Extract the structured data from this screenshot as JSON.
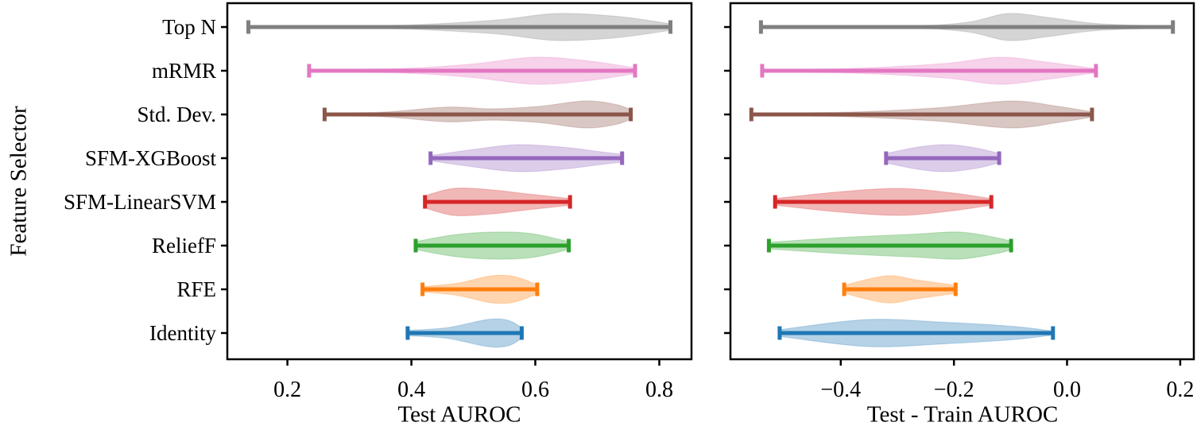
{
  "chart_data": [
    {
      "type": "violin",
      "orientation": "horizontal",
      "panel": "left",
      "xlabel": "Test AUROC",
      "ylabel": "Feature Selector",
      "xlim": [
        0.103,
        0.852
      ],
      "xticks": [
        0.2,
        0.4,
        0.6,
        0.8
      ],
      "xtick_labels": [
        "0.2",
        "0.4",
        "0.6",
        "0.8"
      ],
      "grid": false,
      "legend": "none",
      "fill_alpha": 0.33,
      "categories": [
        "Top N",
        "mRMR",
        "Std. Dev.",
        "SFM-XGBoost",
        "SFM-LinearSVM",
        "ReliefF",
        "RFE",
        "Identity"
      ],
      "series": [
        {
          "label": "Top N",
          "color": "#7f7f7f",
          "range": [
            0.137,
            0.818
          ],
          "peak": 0.64,
          "profile": [
            [
              0,
              0.06
            ],
            [
              0.3,
              0.09
            ],
            [
              0.45,
              0.25
            ],
            [
              0.6,
              0.55
            ],
            [
              0.73,
              1.0
            ],
            [
              0.87,
              0.8
            ],
            [
              1,
              0.25
            ]
          ]
        },
        {
          "label": "mRMR",
          "color": "#e377c2",
          "range": [
            0.235,
            0.761
          ],
          "peak": 0.6,
          "profile": [
            [
              0,
              0.06
            ],
            [
              0.3,
              0.18
            ],
            [
              0.5,
              0.5
            ],
            [
              0.69,
              1.0
            ],
            [
              0.85,
              0.75
            ],
            [
              1,
              0.22
            ]
          ]
        },
        {
          "label": "Std. Dev.",
          "color": "#8c564b",
          "range": [
            0.26,
            0.754
          ],
          "peak": 0.68,
          "profile": [
            [
              0,
              0.08
            ],
            [
              0.2,
              0.18
            ],
            [
              0.4,
              0.55
            ],
            [
              0.55,
              0.42
            ],
            [
              0.7,
              0.6
            ],
            [
              0.85,
              1.0
            ],
            [
              0.95,
              0.75
            ],
            [
              1,
              0.35
            ]
          ]
        },
        {
          "label": "SFM-XGBoost",
          "color": "#9467bd",
          "range": [
            0.431,
            0.74
          ],
          "peak": 0.57,
          "profile": [
            [
              0,
              0.2
            ],
            [
              0.2,
              0.6
            ],
            [
              0.45,
              1.0
            ],
            [
              0.7,
              0.8
            ],
            [
              0.9,
              0.45
            ],
            [
              1,
              0.3
            ]
          ]
        },
        {
          "label": "SFM-LinearSVM",
          "color": "#d62728",
          "range": [
            0.422,
            0.656
          ],
          "peak": 0.46,
          "profile": [
            [
              0,
              0.45
            ],
            [
              0.2,
              1.0
            ],
            [
              0.45,
              0.9
            ],
            [
              0.7,
              0.6
            ],
            [
              1,
              0.25
            ]
          ]
        },
        {
          "label": "ReliefF",
          "color": "#2ca02c",
          "range": [
            0.407,
            0.654
          ],
          "peak": 0.53,
          "profile": [
            [
              0,
              0.3
            ],
            [
              0.25,
              0.8
            ],
            [
              0.5,
              1.0
            ],
            [
              0.75,
              0.9
            ],
            [
              1,
              0.3
            ]
          ]
        },
        {
          "label": "RFE",
          "color": "#ff7f0e",
          "range": [
            0.418,
            0.603
          ],
          "peak": 0.53,
          "profile": [
            [
              0,
              0.2
            ],
            [
              0.3,
              0.45
            ],
            [
              0.6,
              1.0
            ],
            [
              0.8,
              0.95
            ],
            [
              1,
              0.35
            ]
          ]
        },
        {
          "label": "Identity",
          "color": "#1f77b4",
          "range": [
            0.394,
            0.578
          ],
          "peak": 0.52,
          "profile": [
            [
              0,
              0.2
            ],
            [
              0.35,
              0.4
            ],
            [
              0.7,
              1.0
            ],
            [
              0.88,
              0.95
            ],
            [
              1,
              0.4
            ]
          ]
        }
      ]
    },
    {
      "type": "violin",
      "orientation": "horizontal",
      "panel": "right",
      "xlabel": "Test - Train AUROC",
      "ylabel": "",
      "xlim": [
        -0.595,
        0.224
      ],
      "xticks": [
        -0.4,
        -0.2,
        0.0,
        0.2
      ],
      "xtick_labels": [
        "−0.4",
        "−0.2",
        "0.0",
        "0.2"
      ],
      "grid": false,
      "legend": "none",
      "fill_alpha": 0.33,
      "categories": [
        "Top N",
        "mRMR",
        "Std. Dev.",
        "SFM-XGBoost",
        "SFM-LinearSVM",
        "ReliefF",
        "RFE",
        "Identity"
      ],
      "series": [
        {
          "label": "Top N",
          "color": "#7f7f7f",
          "range": [
            -0.541,
            0.187
          ],
          "peak": -0.11,
          "profile": [
            [
              0,
              0.05
            ],
            [
              0.35,
              0.08
            ],
            [
              0.5,
              0.35
            ],
            [
              0.6,
              1.0
            ],
            [
              0.7,
              0.7
            ],
            [
              0.82,
              0.25
            ],
            [
              1,
              0.06
            ]
          ]
        },
        {
          "label": "mRMR",
          "color": "#e377c2",
          "range": [
            -0.539,
            0.051
          ],
          "peak": -0.12,
          "profile": [
            [
              0,
              0.06
            ],
            [
              0.3,
              0.2
            ],
            [
              0.55,
              0.55
            ],
            [
              0.71,
              1.0
            ],
            [
              0.85,
              0.65
            ],
            [
              1,
              0.15
            ]
          ]
        },
        {
          "label": "Std. Dev.",
          "color": "#8c564b",
          "range": [
            -0.558,
            0.044
          ],
          "peak": -0.1,
          "profile": [
            [
              0,
              0.06
            ],
            [
              0.3,
              0.18
            ],
            [
              0.55,
              0.5
            ],
            [
              0.76,
              1.0
            ],
            [
              0.9,
              0.6
            ],
            [
              1,
              0.2
            ]
          ]
        },
        {
          "label": "SFM-XGBoost",
          "color": "#9467bd",
          "range": [
            -0.32,
            -0.12
          ],
          "peak": -0.21,
          "profile": [
            [
              0,
              0.35
            ],
            [
              0.3,
              0.85
            ],
            [
              0.55,
              1.0
            ],
            [
              0.8,
              0.75
            ],
            [
              1,
              0.35
            ]
          ]
        },
        {
          "label": "SFM-LinearSVM",
          "color": "#d62728",
          "range": [
            -0.516,
            -0.134
          ],
          "peak": -0.3,
          "profile": [
            [
              0,
              0.25
            ],
            [
              0.3,
              0.75
            ],
            [
              0.57,
              1.0
            ],
            [
              0.8,
              0.7
            ],
            [
              1,
              0.25
            ]
          ]
        },
        {
          "label": "ReliefF",
          "color": "#2ca02c",
          "range": [
            -0.527,
            -0.099
          ],
          "peak": -0.19,
          "profile": [
            [
              0,
              0.25
            ],
            [
              0.3,
              0.6
            ],
            [
              0.6,
              0.85
            ],
            [
              0.79,
              1.0
            ],
            [
              0.95,
              0.55
            ],
            [
              1,
              0.3
            ]
          ]
        },
        {
          "label": "RFE",
          "color": "#ff7f0e",
          "range": [
            -0.394,
            -0.197
          ],
          "peak": -0.32,
          "profile": [
            [
              0,
              0.3
            ],
            [
              0.38,
              1.0
            ],
            [
              0.65,
              0.7
            ],
            [
              1,
              0.3
            ]
          ]
        },
        {
          "label": "Identity",
          "color": "#1f77b4",
          "range": [
            -0.508,
            -0.025
          ],
          "peak": -0.36,
          "profile": [
            [
              0,
              0.25
            ],
            [
              0.32,
              1.0
            ],
            [
              0.6,
              0.8
            ],
            [
              0.85,
              0.5
            ],
            [
              1,
              0.15
            ]
          ]
        }
      ]
    }
  ]
}
